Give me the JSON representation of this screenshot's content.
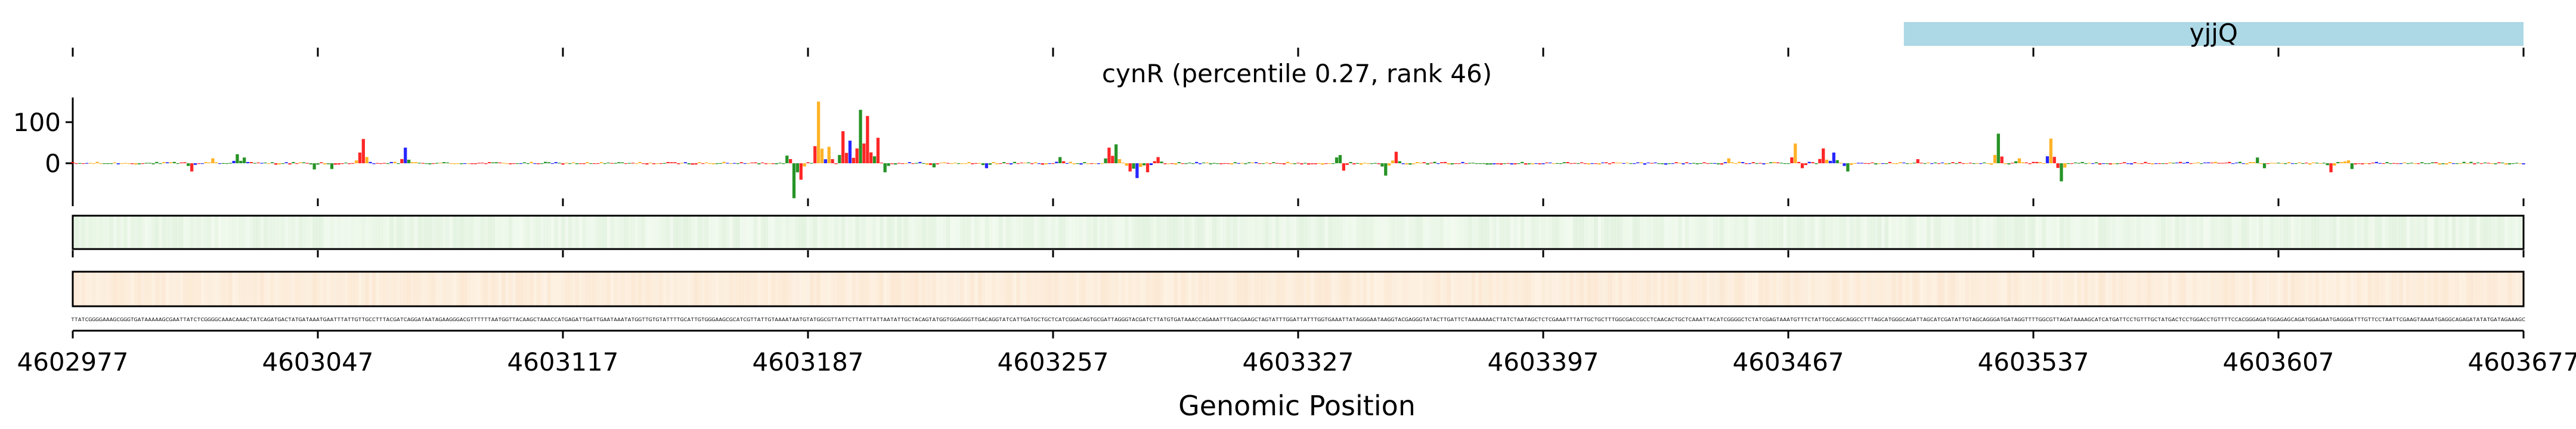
{
  "chart_data": {
    "type": "area",
    "title": "cynR (percentile 0.27, rank 46)",
    "xlabel": "Genomic Position",
    "ylabel": "",
    "x_range": [
      4602977,
      4603677
    ],
    "y_range": [
      -100,
      160
    ],
    "x_ticks": [
      4602977,
      4603047,
      4603117,
      4603187,
      4603257,
      4603327,
      4603397,
      4603467,
      4603537,
      4603607,
      4603677
    ],
    "x_tick_labels": [
      "4602977",
      "4603047",
      "4603117",
      "4603187",
      "4603257",
      "4603327",
      "4603397",
      "4603467",
      "4603537",
      "4603607",
      "4603677"
    ],
    "y_ticks": [
      0,
      100
    ],
    "y_tick_labels": [
      "0",
      "100"
    ],
    "gene_annotation": {
      "name": "yjjQ",
      "start": 4603500,
      "end": 4603677,
      "color": "#add8e6"
    },
    "base_colors": {
      "A": "#008000",
      "C": "#0000ff",
      "G": "#ffa500",
      "T": "#ff0000"
    },
    "peaks": [
      {
        "x": 4603011,
        "y": -20
      },
      {
        "x": 4603017,
        "y": 12
      },
      {
        "x": 4603024,
        "y": 22
      },
      {
        "x": 4603026,
        "y": 14
      },
      {
        "x": 4603046,
        "y": -15
      },
      {
        "x": 4603051,
        "y": -14
      },
      {
        "x": 4603059,
        "y": 19
      },
      {
        "x": 4603060,
        "y": 59
      },
      {
        "x": 4603072,
        "y": 38
      },
      {
        "x": 4603182,
        "y": 68
      },
      {
        "x": 4603183,
        "y": -85
      },
      {
        "x": 4603185,
        "y": -40
      },
      {
        "x": 4603190,
        "y": 150
      },
      {
        "x": 4603193,
        "y": 40
      },
      {
        "x": 4603197,
        "y": 78
      },
      {
        "x": 4603199,
        "y": 55
      },
      {
        "x": 4603202,
        "y": 130
      },
      {
        "x": 4603204,
        "y": 115
      },
      {
        "x": 4603207,
        "y": 62
      },
      {
        "x": 4603209,
        "y": -22
      },
      {
        "x": 4603223,
        "y": -10
      },
      {
        "x": 4603238,
        "y": -12
      },
      {
        "x": 4603259,
        "y": 15
      },
      {
        "x": 4603273,
        "y": 38
      },
      {
        "x": 4603275,
        "y": 46
      },
      {
        "x": 4603279,
        "y": -20
      },
      {
        "x": 4603281,
        "y": -36
      },
      {
        "x": 4603284,
        "y": -22
      },
      {
        "x": 4603287,
        "y": 15
      },
      {
        "x": 4603339,
        "y": 50
      },
      {
        "x": 4603340,
        "y": -18
      },
      {
        "x": 4603352,
        "y": -30
      },
      {
        "x": 4603355,
        "y": 28
      },
      {
        "x": 4603450,
        "y": 12
      },
      {
        "x": 4603469,
        "y": 48
      },
      {
        "x": 4603471,
        "y": -12
      },
      {
        "x": 4603477,
        "y": 36
      },
      {
        "x": 4603480,
        "y": 26
      },
      {
        "x": 4603484,
        "y": -20
      },
      {
        "x": 4603504,
        "y": 10
      },
      {
        "x": 4603527,
        "y": 72
      },
      {
        "x": 4603533,
        "y": 12
      },
      {
        "x": 4603542,
        "y": 60
      },
      {
        "x": 4603545,
        "y": -44
      },
      {
        "x": 4603601,
        "y": 14
      },
      {
        "x": 4603603,
        "y": -12
      },
      {
        "x": 4603622,
        "y": -22
      },
      {
        "x": 4603627,
        "y": 22
      },
      {
        "x": 4603628,
        "y": -14
      }
    ],
    "sequence": "TTATCGGGGAAAGCGGGTGATAAAAAGCGAATTATCTCGGGGCAAACAAACTATCAGATGACTATGATAAATGAATTTATTGTTGCCTTTACGATCAGGATAATAGAAGGGACGTTTTTTAATGGTTACAAGCTAAACCATGAGATTGATTGAATAAATATGGTTGTGTATTTTGCATTGTGGGAAGCGCATCGTTATTGTAAAATAATGTATGGCGTTATTCTTATTTATTAATATTGCTACAGTATGGTGGAGGGTTGACAGGTATCATTGATGCTGCTCATCGGACAGTGCGATTAGGGTACGATCTTATGTGATAAACCAGAAATTTGACGAAGCTAGTATTTGGATTATTTGGTGAAATTATAGGGAATAAGGTACGAGGGTATACTTGATTCTAAAAAAACTTATCTAATAGCTCTCGAAATTTATTGCTGCTTTGGCGACCGCCTCAACACTGCTCAAATTACATCGGGGCTCTATCGAGTAAATGTTTCTATTGCCAGCAGGCCTTTAGCATGGGCAGATTAGCATCGATATTGTAGCAGGGATGATAGGTTTTGGCGTTAGATAAAAGCATCATGATTCCTGTTTGCTATGACTCCTGGACCTGTTTTCCACGGGAGATGGAGAGCAGATGGAGAATGAGGGATTTGTTCCTAATTCGAAGTAAAATGAGGCAGAGATATATGATAGAAAGCTCTGCTGTTTTCATGTCAAAATGTAACAGAGTGGTGCTACGCTTGGGGCAGTCGTTTGCTTGGCACGGTAACATGAATAGTCATCCGAATGTGGGCATTGGACAGCATACTAGCCGTGCTATTTTCTGGGTCAGCATCTT"
  }
}
